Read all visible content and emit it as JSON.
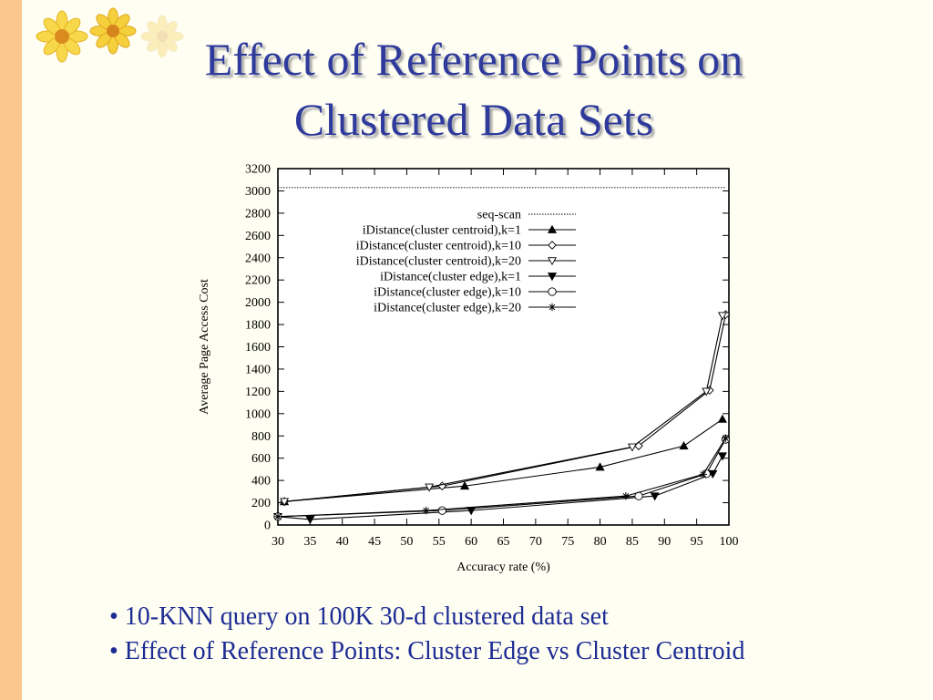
{
  "slide": {
    "title_line1": "Effect of Reference Points on",
    "title_line2": "Clustered Data Sets",
    "bullets": [
      "• 10-KNN query on 100K 30-d clustered data set",
      "• Effect of Reference Points: Cluster Edge vs Cluster Centroid"
    ]
  },
  "colors": {
    "title": "#2e3a9c",
    "bullet_text": "#1d2c94",
    "side_strip": "#fbc78f",
    "background": "#fffef2"
  },
  "icons": [
    "sunflower-icon",
    "sunflower-icon",
    "sunflower-icon"
  ],
  "chart_data": {
    "type": "line",
    "title": "",
    "xlabel": "Accuracy rate (%)",
    "ylabel": "Average Page Access Cost",
    "xlim": [
      30,
      100
    ],
    "ylim": [
      0,
      3200
    ],
    "xticks": [
      30,
      35,
      40,
      45,
      50,
      55,
      60,
      65,
      70,
      75,
      80,
      85,
      90,
      95,
      100
    ],
    "yticks": [
      0,
      200,
      400,
      600,
      800,
      1000,
      1200,
      1400,
      1600,
      1800,
      2000,
      2200,
      2400,
      2600,
      2800,
      3000,
      3200
    ],
    "grid": false,
    "legend_position": "top-right",
    "series": [
      {
        "name": "seq-scan",
        "marker": "none",
        "dash": "dotted",
        "x": [
          30,
          99.5
        ],
        "y": [
          3030,
          3030
        ]
      },
      {
        "name": "iDistance(cluster centroid),k=1",
        "marker": "triangle-up-filled",
        "x": [
          31,
          59,
          80,
          93,
          99
        ],
        "y": [
          210,
          350,
          520,
          710,
          950
        ]
      },
      {
        "name": "iDistance(cluster centroid),k=10",
        "marker": "diamond-open",
        "x": [
          31,
          55.5,
          86,
          97,
          99.5
        ],
        "y": [
          210,
          350,
          710,
          1210,
          1890
        ]
      },
      {
        "name": "iDistance(cluster centroid),k=20",
        "marker": "triangle-down-open",
        "x": [
          31,
          53.5,
          85,
          96.5,
          99
        ],
        "y": [
          210,
          340,
          700,
          1200,
          1880
        ]
      },
      {
        "name": "iDistance(cluster edge),k=1",
        "marker": "triangle-down-filled",
        "x": [
          30,
          35,
          60,
          88.5,
          97.5,
          99
        ],
        "y": [
          75,
          50,
          130,
          260,
          460,
          620
        ]
      },
      {
        "name": "iDistance(cluster edge),k=10",
        "marker": "circle-open",
        "x": [
          30,
          55.5,
          86,
          96.5,
          99.5
        ],
        "y": [
          75,
          130,
          260,
          460,
          770
        ]
      },
      {
        "name": "iDistance(cluster edge),k=20",
        "marker": "star",
        "x": [
          30,
          53,
          84,
          96,
          99.5
        ],
        "y": [
          75,
          130,
          260,
          455,
          780
        ]
      }
    ]
  }
}
